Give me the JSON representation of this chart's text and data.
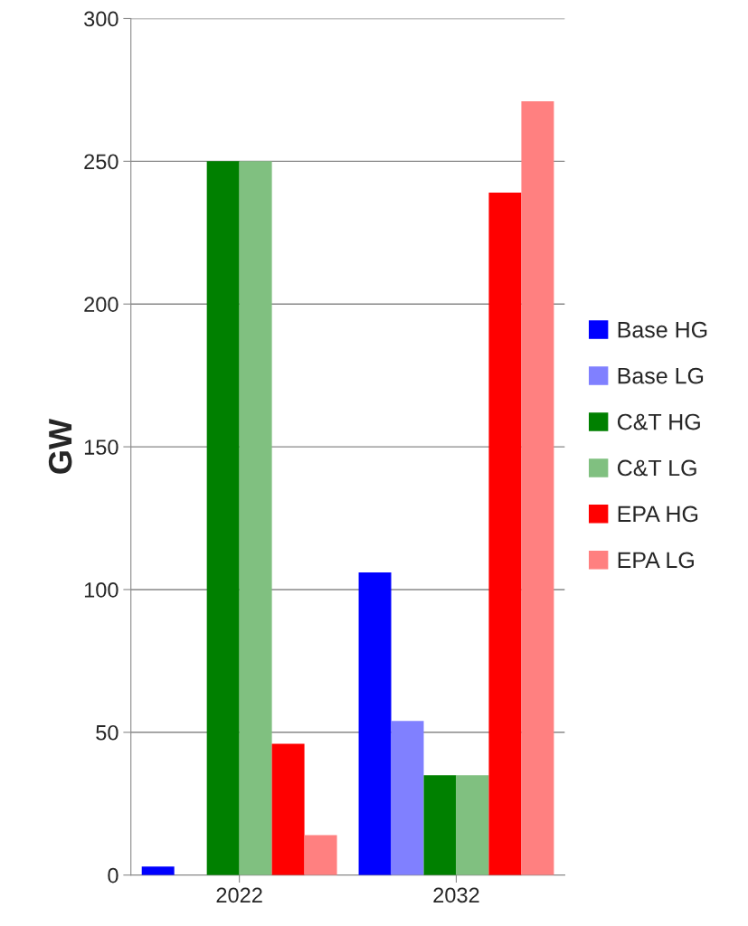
{
  "chart_data": {
    "type": "bar",
    "ylabel": "GW",
    "categories": [
      "2022",
      "2032"
    ],
    "series": [
      {
        "name": "Base HG",
        "color": "#0000ff",
        "values": [
          3,
          106
        ]
      },
      {
        "name": "Base LG",
        "color": "#8080ff",
        "values": [
          0,
          54
        ]
      },
      {
        "name": "C&T HG",
        "color": "#008000",
        "values": [
          250,
          35
        ]
      },
      {
        "name": "C&T LG",
        "color": "#80c080",
        "values": [
          250,
          35
        ]
      },
      {
        "name": "EPA HG",
        "color": "#ff0000",
        "values": [
          46,
          239
        ]
      },
      {
        "name": "EPA LG",
        "color": "#ff8080",
        "values": [
          14,
          271
        ]
      }
    ],
    "ylim": [
      0,
      300
    ],
    "yticks": [
      0,
      50,
      100,
      150,
      200,
      250,
      300
    ],
    "grid": "y",
    "legend": "right"
  }
}
